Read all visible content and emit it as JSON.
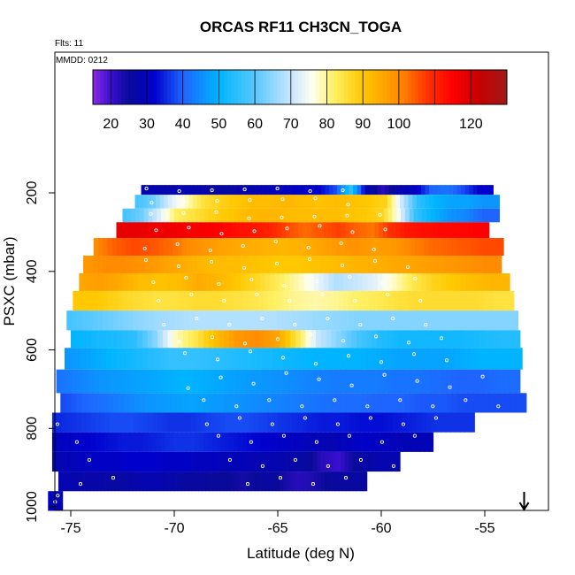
{
  "chart_data": {
    "type": "heatmap",
    "title": "ORCAS RF11 CH3CN_TOGA",
    "flights_label": "Flts: 11",
    "date_label": "MMDD: 0212",
    "xlabel": "Latitude (deg N)",
    "ylabel": "PSXC (mbar)",
    "xlim": [
      -76.2,
      -52.2
    ],
    "ylim": [
      1010,
      50
    ],
    "x_ticks": [
      -75,
      -70,
      -65,
      -60,
      -55
    ],
    "y_ticks": [
      200,
      400,
      600,
      800,
      1000
    ],
    "colorbar": {
      "range": [
        15,
        130
      ],
      "tick_values": [
        20,
        30,
        40,
        50,
        60,
        70,
        80,
        90,
        100,
        120
      ],
      "stops": [
        {
          "v": 15,
          "c": "#8a2be2"
        },
        {
          "v": 20,
          "c": "#3a0fd0"
        },
        {
          "v": 25,
          "c": "#0a0a9a"
        },
        {
          "v": 32,
          "c": "#0000cd"
        },
        {
          "v": 40,
          "c": "#1e64ff"
        },
        {
          "v": 50,
          "c": "#00b4ff"
        },
        {
          "v": 60,
          "c": "#58c8ff"
        },
        {
          "v": 70,
          "c": "#c8e6ff"
        },
        {
          "v": 76,
          "c": "#fffff0"
        },
        {
          "v": 82,
          "c": "#fff064"
        },
        {
          "v": 90,
          "c": "#ffc800"
        },
        {
          "v": 100,
          "c": "#ff8c00"
        },
        {
          "v": 108,
          "c": "#ff3200"
        },
        {
          "v": 115,
          "c": "#ff0000"
        },
        {
          "v": 122,
          "c": "#c80000"
        },
        {
          "v": 130,
          "c": "#a01a1a"
        }
      ]
    },
    "layers": [
      {
        "p_top": 180,
        "p_bot": 205,
        "lat_min": -71.6,
        "lat_max": -54.6,
        "cols": [
          28,
          28,
          28,
          28,
          27,
          26,
          27,
          28,
          29,
          30,
          31,
          32,
          38,
          55,
          28,
          22,
          28,
          30,
          40,
          42,
          38,
          32
        ]
      },
      {
        "p_top": 205,
        "p_bot": 240,
        "lat_min": -71.9,
        "lat_max": -54.3,
        "cols": [
          58,
          62,
          72,
          78,
          85,
          88,
          90,
          92,
          92,
          93,
          92,
          91,
          92,
          91,
          90,
          88,
          70,
          55,
          50,
          48,
          48,
          46
        ]
      },
      {
        "p_top": 240,
        "p_bot": 275,
        "lat_min": -72.5,
        "lat_max": -54.3,
        "cols": [
          58,
          62,
          72,
          82,
          85,
          88,
          90,
          92,
          93,
          93,
          92,
          92,
          92,
          91,
          90,
          88,
          75,
          56,
          50,
          46,
          44,
          40
        ]
      },
      {
        "p_top": 275,
        "p_bot": 315,
        "lat_min": -72.8,
        "lat_max": -54.8,
        "cols": [
          118,
          118,
          117,
          117,
          116,
          116,
          115,
          113,
          112,
          110,
          106,
          103,
          105,
          107,
          104,
          102,
          108,
          112,
          113,
          114,
          114,
          115
        ]
      },
      {
        "p_top": 315,
        "p_bot": 360,
        "lat_min": -73.9,
        "lat_max": -54.1,
        "cols": [
          100,
          104,
          106,
          105,
          103,
          100,
          98,
          96,
          95,
          94,
          93,
          94,
          96,
          98,
          99,
          97,
          98,
          101,
          103,
          104,
          105,
          106
        ]
      },
      {
        "p_top": 360,
        "p_bot": 405,
        "lat_min": -74.4,
        "lat_max": -54.2,
        "cols": [
          98,
          100,
          100,
          99,
          97,
          95,
          93,
          92,
          92,
          91,
          90,
          90,
          91,
          92,
          93,
          94,
          95,
          96,
          97,
          98,
          99,
          100
        ]
      },
      {
        "p_top": 405,
        "p_bot": 450,
        "lat_min": -74.6,
        "lat_max": -53.8,
        "cols": [
          96,
          97,
          95,
          92,
          91,
          92,
          95,
          93,
          90,
          87,
          83,
          79,
          74,
          68,
          70,
          73,
          78,
          84,
          88,
          90,
          92,
          93
        ]
      },
      {
        "p_top": 450,
        "p_bot": 500,
        "lat_min": -74.9,
        "lat_max": -53.6,
        "cols": [
          90,
          90,
          88,
          86,
          85,
          85,
          86,
          86,
          85,
          84,
          82,
          80,
          79,
          80,
          82,
          83,
          85,
          86,
          86,
          86,
          86,
          85
        ]
      },
      {
        "p_top": 500,
        "p_bot": 550,
        "lat_min": -75.2,
        "lat_max": -53.4,
        "cols": [
          58,
          60,
          62,
          64,
          66,
          67,
          68,
          68,
          68,
          68,
          68,
          67,
          66,
          65,
          64,
          64,
          64,
          64,
          64,
          64,
          64,
          64
        ]
      },
      {
        "p_top": 550,
        "p_bot": 595,
        "lat_min": -75.0,
        "lat_max": -53.3,
        "cols": [
          50,
          52,
          53,
          55,
          64,
          78,
          84,
          92,
          98,
          100,
          96,
          84,
          70,
          64,
          58,
          54,
          52,
          52,
          52,
          52,
          53,
          54
        ]
      },
      {
        "p_top": 595,
        "p_bot": 650,
        "lat_min": -75.3,
        "lat_max": -53.2,
        "cols": [
          46,
          48,
          50,
          52,
          54,
          56,
          56,
          55,
          54,
          53,
          52,
          51,
          50,
          50,
          50,
          49,
          48,
          48,
          48,
          49,
          50,
          50
        ]
      },
      {
        "p_top": 650,
        "p_bot": 710,
        "lat_min": -75.7,
        "lat_max": -53.3,
        "cols": [
          42,
          44,
          46,
          47,
          48,
          49,
          50,
          49,
          48,
          47,
          46,
          45,
          44,
          43,
          43,
          43,
          42,
          42,
          41,
          40,
          40,
          41
        ]
      },
      {
        "p_top": 710,
        "p_bot": 760,
        "lat_min": -75.5,
        "lat_max": -53.0,
        "cols": [
          38,
          40,
          42,
          44,
          46,
          47,
          48,
          47,
          46,
          45,
          44,
          43,
          42,
          41,
          41,
          40,
          40,
          39,
          39,
          38,
          38,
          38
        ]
      },
      {
        "p_top": 760,
        "p_bot": 810,
        "lat_min": -75.9,
        "lat_max": -55.5,
        "cols": [
          35,
          36,
          37,
          38,
          38,
          37,
          36,
          36,
          37,
          38,
          38,
          37,
          36,
          35,
          34,
          34,
          33,
          33,
          34,
          35,
          36,
          36
        ]
      },
      {
        "p_top": 810,
        "p_bot": 860,
        "lat_min": -75.9,
        "lat_max": -57.5,
        "cols": [
          30,
          31,
          32,
          33,
          34,
          34,
          35,
          36,
          36,
          35,
          34,
          33,
          32,
          31,
          30,
          29,
          28,
          30,
          31,
          30,
          29,
          29
        ]
      },
      {
        "p_top": 860,
        "p_bot": 910,
        "lat_min": -75.9,
        "lat_max": -59.1,
        "cols": [
          28,
          29,
          30,
          31,
          31,
          32,
          32,
          31,
          31,
          30,
          30,
          29,
          29,
          28,
          28,
          27,
          26,
          22,
          20,
          25,
          27,
          28
        ]
      },
      {
        "p_top": 910,
        "p_bot": 960,
        "lat_min": -75.6,
        "lat_max": -60.7,
        "cols": [
          28,
          28,
          27,
          27,
          26,
          27,
          28,
          28,
          27,
          26,
          26,
          25,
          25,
          24,
          25,
          26,
          24,
          22,
          23,
          25,
          26,
          26
        ]
      },
      {
        "p_top": 960,
        "p_bot": 1010,
        "lat_min": -76.1,
        "lat_max": -75.4,
        "cols": [
          30,
          30,
          29,
          29
        ]
      }
    ],
    "arrow_lat": -53.1
  }
}
